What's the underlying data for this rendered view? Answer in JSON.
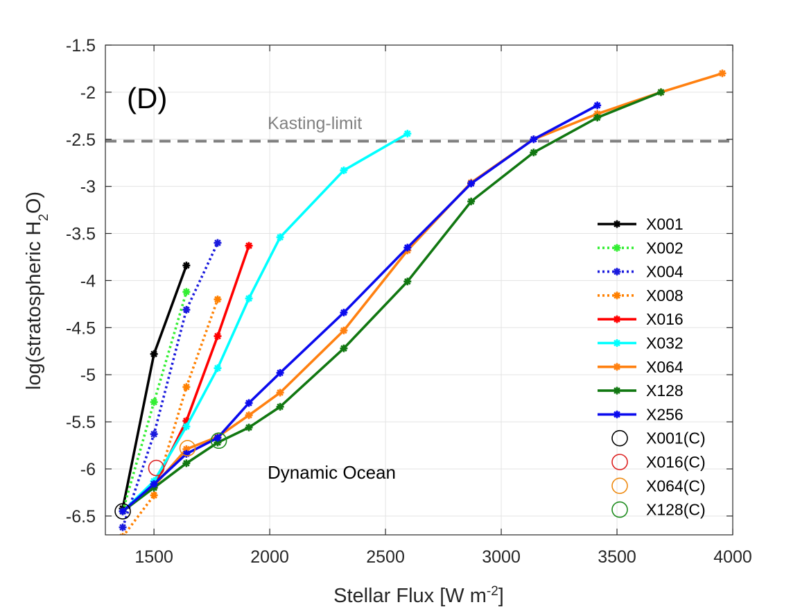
{
  "chart_data": {
    "type": "line",
    "panel_label": "(D)",
    "xlabel": {
      "main": "Stellar Flux [W m",
      "sup": "-2",
      "end": "]"
    },
    "ylabel": {
      "main": "log(stratospheric H",
      "sub": "2",
      "end": "O)"
    },
    "xlim": [
      1290,
      4000
    ],
    "ylim": [
      -6.7,
      -1.5
    ],
    "xticks": [
      1500,
      2000,
      2500,
      3000,
      3500,
      4000
    ],
    "yticks": [
      -1.5,
      -2,
      -2.5,
      -3,
      -3.5,
      -4,
      -4.5,
      -5,
      -5.5,
      -6,
      -6.5
    ],
    "xtick_labels": [
      "1500",
      "2000",
      "2500",
      "3000",
      "3500",
      "4000"
    ],
    "ytick_labels": [
      "-1.5",
      "-2",
      "-2.5",
      "-3",
      "-3.5",
      "-4",
      "-4.5",
      "-5",
      "-5.5",
      "-6",
      "-6.5"
    ],
    "grid": true,
    "annotations": [
      {
        "text": "Kasting-limit",
        "x": 2000,
        "y": -2.35,
        "color": "#808080"
      },
      {
        "text": "Dynamic Ocean",
        "x": 2010,
        "y": -6.03,
        "color": "#000000"
      }
    ],
    "reference_line": {
      "y": -2.52,
      "style": "dashed",
      "color": "#808080"
    },
    "series": [
      {
        "name": "X001",
        "color": "#000000",
        "dash": false,
        "x": [
          1365,
          1500,
          1640
        ],
        "y": [
          -6.42,
          -4.78,
          -3.84
        ]
      },
      {
        "name": "X002",
        "color": "#33ee33",
        "dash": true,
        "x": [
          1365,
          1500,
          1640
        ],
        "y": [
          -6.45,
          -5.29,
          -4.12
        ]
      },
      {
        "name": "X004",
        "color": "#1a1add",
        "dash": true,
        "x": [
          1365,
          1500,
          1640,
          1775
        ],
        "y": [
          -6.62,
          -5.63,
          -4.31,
          -3.6
        ]
      },
      {
        "name": "X008",
        "color": "#ff8000",
        "dash": true,
        "x": [
          1365,
          1500,
          1640,
          1775
        ],
        "y": [
          -6.72,
          -6.28,
          -5.13,
          -4.2
        ]
      },
      {
        "name": "X016",
        "color": "#ff0000",
        "dash": false,
        "x": [
          1365,
          1500,
          1640,
          1775,
          1910
        ],
        "y": [
          -6.45,
          -6.18,
          -5.49,
          -4.59,
          -3.63
        ]
      },
      {
        "name": "X032",
        "color": "#00ffff",
        "dash": false,
        "x": [
          1365,
          1500,
          1640,
          1775,
          1910,
          2045,
          2320,
          2595
        ],
        "y": [
          -6.45,
          -6.13,
          -5.55,
          -4.93,
          -4.19,
          -3.54,
          -2.83,
          -2.44
        ]
      },
      {
        "name": "X064",
        "color": "#ff8010",
        "dash": false,
        "x": [
          1365,
          1500,
          1640,
          1775,
          1910,
          2045,
          2320,
          2595,
          2870,
          3140,
          3415,
          3690,
          3955
        ],
        "y": [
          -6.45,
          -6.18,
          -5.79,
          -5.66,
          -5.43,
          -5.19,
          -4.53,
          -3.68,
          -2.96,
          -2.5,
          -2.23,
          -2.0,
          -1.8
        ]
      },
      {
        "name": "X128",
        "color": "#117711",
        "dash": false,
        "x": [
          1365,
          1500,
          1640,
          1775,
          1910,
          2045,
          2320,
          2595,
          2870,
          3140,
          3415,
          3690
        ],
        "y": [
          -6.45,
          -6.2,
          -5.94,
          -5.72,
          -5.56,
          -5.34,
          -4.72,
          -4.01,
          -3.16,
          -2.64,
          -2.27,
          -2.0
        ]
      },
      {
        "name": "X256",
        "color": "#0a0aee",
        "dash": false,
        "x": [
          1365,
          1500,
          1640,
          1775,
          1910,
          2045,
          2320,
          2595,
          2870,
          3140,
          3415
        ],
        "y": [
          -6.45,
          -6.16,
          -5.84,
          -5.67,
          -5.3,
          -4.98,
          -4.34,
          -3.65,
          -2.97,
          -2.5,
          -2.14
        ]
      }
    ],
    "circle_series": [
      {
        "name": "X001(C)",
        "color": "#000000",
        "x": [
          1365
        ],
        "y": [
          -6.45
        ]
      },
      {
        "name": "X016(C)",
        "color": "#dd2020",
        "x": [
          1510
        ],
        "y": [
          -5.99
        ]
      },
      {
        "name": "X064(C)",
        "color": "#ee8a10",
        "x": [
          1645
        ],
        "y": [
          -5.78
        ]
      },
      {
        "name": "X128(C)",
        "color": "#1a8a1a",
        "x": [
          1780
        ],
        "y": [
          -5.7
        ]
      }
    ],
    "legend_position": "right"
  }
}
